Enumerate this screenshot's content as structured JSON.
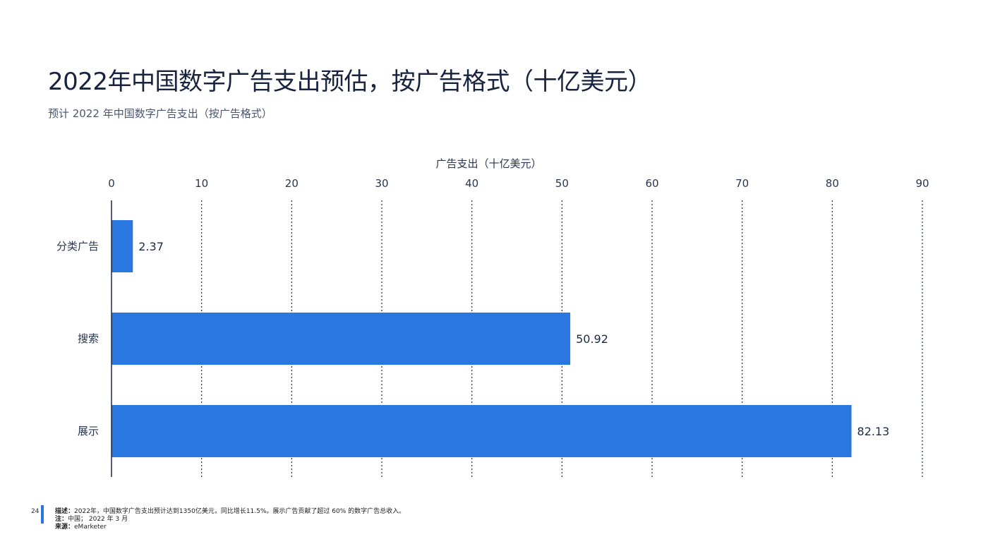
{
  "header": {
    "title": "2022年中国数字广告支出预估，按广告格式（十亿美元）",
    "subtitle": "预计 2022 年中国数字广告支出（按广告格式）"
  },
  "chart_data": {
    "type": "bar",
    "orientation": "horizontal",
    "xlabel": "广告支出（十亿美元）",
    "ylabel": "",
    "xlim": [
      0,
      90
    ],
    "xticks": [
      0,
      10,
      20,
      30,
      40,
      50,
      60,
      70,
      80,
      90
    ],
    "categories": [
      "分类广告",
      "搜索",
      "展示"
    ],
    "values": [
      2.37,
      50.92,
      82.13
    ],
    "value_labels": [
      "2.37",
      "50.92",
      "82.13"
    ],
    "grid": "vertical dotted",
    "axis_position": "top",
    "bar_color": "#2a77df"
  },
  "footer": {
    "page_number": "24",
    "description_label": "描述：",
    "description": "2022年，中国数字广告支出预计达到1350亿美元，同比增长11.5%。展示广告贡献了超过 60% 的数字广告总收入。",
    "note_label": "注：",
    "note": "中国； 2022 年 3 月",
    "source_label": "来源：",
    "source": "eMarketer"
  }
}
